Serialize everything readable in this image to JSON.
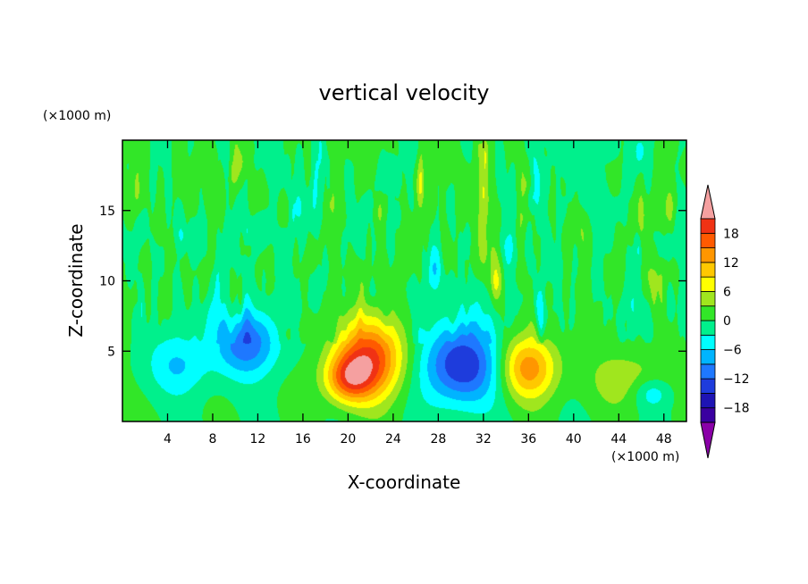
{
  "chart_data": {
    "type": "heatmap",
    "title": "vertical velocity",
    "xlabel": "X-coordinate",
    "ylabel": "Z-coordinate",
    "x_unit": "(×1000 m)",
    "y_unit": "(×1000 m)",
    "xlim": [
      0,
      50
    ],
    "ylim": [
      0,
      20
    ],
    "x_ticks": [
      4,
      8,
      12,
      16,
      20,
      24,
      28,
      32,
      36,
      40,
      44,
      48
    ],
    "y_ticks": [
      5,
      10,
      15
    ],
    "colorbar": {
      "levels": [
        -21,
        -18,
        -15,
        -12,
        -9,
        -6,
        -3,
        0,
        3,
        6,
        9,
        12,
        15,
        18,
        21
      ],
      "tick_values": [
        -18,
        -12,
        -6,
        0,
        6,
        12,
        18
      ],
      "tick_labels": [
        "−18",
        "−12",
        "−6",
        "0",
        "6",
        "12",
        "18"
      ],
      "colors": [
        "#8a00a8",
        "#3a00a0",
        "#1e14b4",
        "#1e3cdc",
        "#1e78ff",
        "#00b4ff",
        "#00ffff",
        "#00f08c",
        "#32e628",
        "#a0e61e",
        "#ffff00",
        "#ffc800",
        "#ff9600",
        "#ff5a00",
        "#f03214",
        "#f5a0a0"
      ]
    },
    "features": [
      {
        "x": 22,
        "z": 4.5,
        "peak": 18,
        "sx": 2.2,
        "sz": 2.0
      },
      {
        "x": 20,
        "z": 3.0,
        "peak": 13,
        "sx": 1.5,
        "sz": 1.2
      },
      {
        "x": 36,
        "z": 3.8,
        "peak": 14,
        "sx": 1.8,
        "sz": 1.6
      },
      {
        "x": 30,
        "z": 4.0,
        "peak": -15,
        "sx": 2.5,
        "sz": 2.0
      },
      {
        "x": 11,
        "z": 5.5,
        "peak": -11,
        "sx": 2.0,
        "sz": 1.6
      },
      {
        "x": 5,
        "z": 4.0,
        "peak": -6,
        "sx": 2.0,
        "sz": 1.5
      },
      {
        "x": 45,
        "z": 3.0,
        "peak": 5,
        "sx": 2.5,
        "sz": 1.5
      },
      {
        "x": 47,
        "z": 2.0,
        "peak": -6,
        "sx": 1.2,
        "sz": 0.8
      }
    ]
  }
}
